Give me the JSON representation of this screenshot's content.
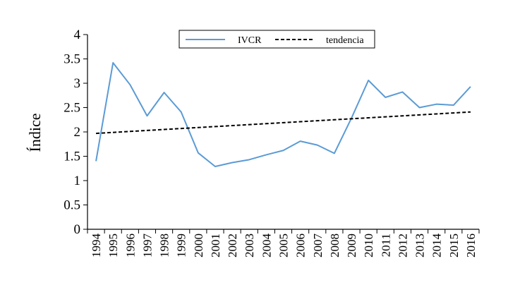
{
  "chart_data": {
    "type": "line",
    "title": "",
    "xlabel": "",
    "ylabel": "Índice",
    "x": [
      "1994",
      "1995",
      "1996",
      "1997",
      "1998",
      "1999",
      "2000",
      "2001",
      "2002",
      "2003",
      "2004",
      "2005",
      "2006",
      "2007",
      "2008",
      "2009",
      "2010",
      "2011",
      "2012",
      "2013",
      "2014",
      "2015",
      "2016"
    ],
    "ylim": [
      0,
      4
    ],
    "yticks": [
      "0",
      "0.5",
      "1",
      "1.5",
      "2",
      "2.5",
      "3",
      "3.5",
      "4"
    ],
    "grid": false,
    "legend_position": "top-center",
    "series": [
      {
        "name": "IVCR",
        "style": "solid",
        "color": "#5B9BD5",
        "values": [
          1.4,
          3.42,
          2.97,
          2.33,
          2.81,
          2.41,
          1.57,
          1.29,
          1.37,
          1.43,
          1.53,
          1.62,
          1.81,
          1.73,
          1.56,
          2.28,
          3.06,
          2.71,
          2.82,
          2.5,
          2.57,
          2.55,
          2.93
        ]
      },
      {
        "name": "tendencia",
        "style": "dashed",
        "color": "#000000",
        "values": [
          1.97,
          1.99,
          2.01,
          2.03,
          2.05,
          2.07,
          2.09,
          2.11,
          2.13,
          2.15,
          2.17,
          2.19,
          2.21,
          2.23,
          2.25,
          2.27,
          2.29,
          2.31,
          2.33,
          2.35,
          2.37,
          2.39,
          2.41
        ]
      }
    ]
  }
}
